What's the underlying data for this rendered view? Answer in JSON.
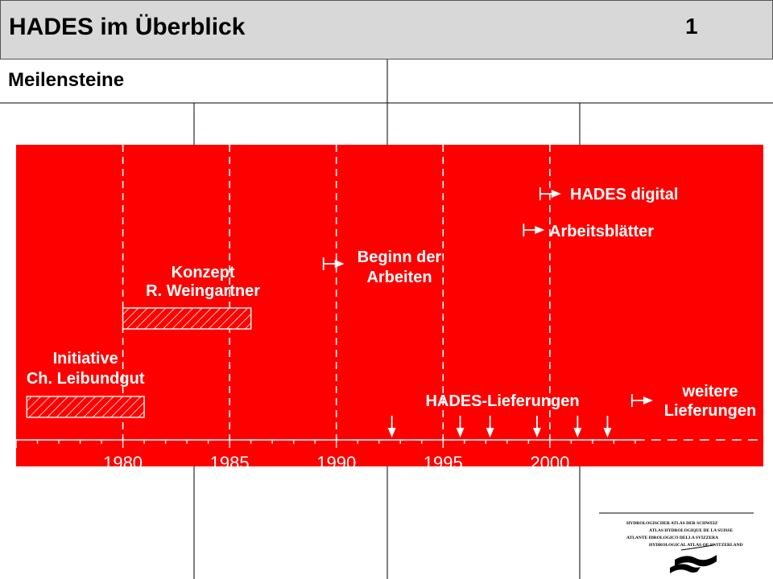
{
  "header": {
    "title": "HADES im Überblick",
    "page_number": "1",
    "subtitle": "Meilensteine"
  },
  "timeline": {
    "background_color": "#ff0000",
    "year_range": [
      1975,
      2010
    ],
    "axis_labels": [
      "1980",
      "1985",
      "1990",
      "1995",
      "2000"
    ],
    "milestones": [
      {
        "id": "hades-digital",
        "label": [
          "HADES digital"
        ],
        "year": 2000
      },
      {
        "id": "arbeitsblaetter",
        "label": [
          "Arbeitsblätter"
        ],
        "year": 1999
      },
      {
        "id": "beginn",
        "label": [
          "Beginn der",
          "Arbeiten"
        ],
        "year": 1990
      }
    ],
    "periods": [
      {
        "id": "konzept",
        "label": [
          "Konzept",
          "R. Weingartner"
        ],
        "start": 1980,
        "end": 1986
      },
      {
        "id": "initiative",
        "label": [
          "Initiative",
          "Ch. Leibundgut"
        ],
        "start": 1975.5,
        "end": 1981
      }
    ],
    "deliveries": {
      "label": "HADES-Lieferungen",
      "years": [
        1992.6,
        1995.8,
        1997.2,
        1999.4,
        2001.3,
        2002.7
      ]
    },
    "further": {
      "label": [
        "weitere",
        "Lieferungen"
      ],
      "year": 2004
    }
  },
  "logo": {
    "lines": [
      "HYDROLOGISCHER ATLAS DER SCHWEIZ",
      "ATLAS HYDROLOGIQUE DE LA SUISSE",
      "ATLANTE IDROLOGICO DELLA SVIZZERA",
      "HYDROLOGICAL ATLAS OF SWITZERLAND"
    ]
  }
}
